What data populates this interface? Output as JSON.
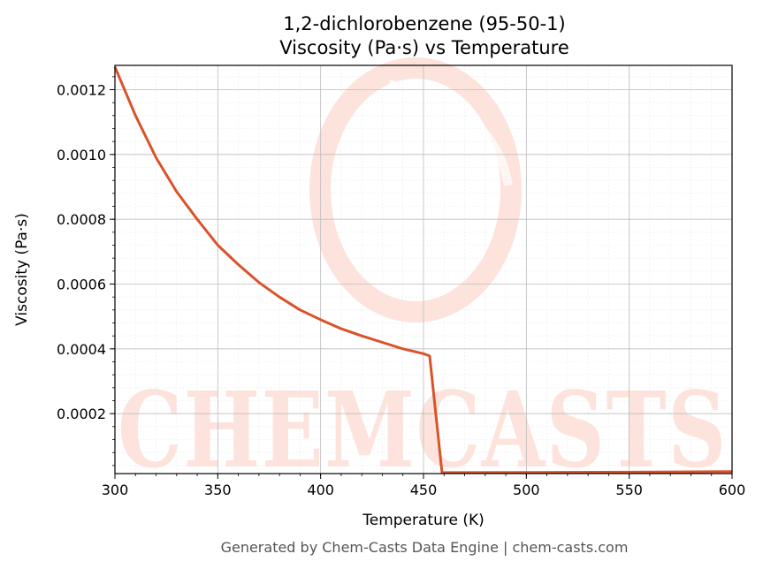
{
  "chart_data": {
    "type": "line",
    "title": "1,2-dichlorobenzene (95-50-1)",
    "subtitle": "Viscosity (Pa·s) vs Temperature",
    "xlabel": "Temperature (K)",
    "ylabel": "Viscosity (Pa·s)",
    "xlim": [
      300,
      600
    ],
    "ylim": [
      1.5e-05,
      0.001275
    ],
    "xticks": [
      300,
      350,
      400,
      450,
      500,
      550,
      600
    ],
    "xtick_labels": [
      "300",
      "350",
      "400",
      "450",
      "500",
      "550",
      "600"
    ],
    "yticks": [
      0.0002,
      0.0004,
      0.0006,
      0.0008,
      0.001,
      0.0012
    ],
    "ytick_labels": [
      "0.0002",
      "0.0004",
      "0.0006",
      "0.0008",
      "0.0010",
      "0.0012"
    ],
    "grid": true,
    "series": [
      {
        "color": "#d9532a",
        "x": [
          300,
          310,
          320,
          330,
          340,
          350,
          360,
          370,
          380,
          390,
          400,
          410,
          420,
          430,
          440,
          450,
          453,
          459,
          460,
          500,
          550,
          600
        ],
        "y": [
          0.00127,
          0.00112,
          0.00099,
          0.000885,
          0.0008,
          0.00072,
          0.00066,
          0.000605,
          0.00056,
          0.00052,
          0.00049,
          0.000462,
          0.00044,
          0.00042,
          0.0004,
          0.000385,
          0.000378,
          1.8e-05,
          1.8e-05,
          1.85e-05,
          1.95e-05,
          2.1e-05
        ]
      }
    ]
  },
  "watermark": {
    "text": "CHEMCASTS",
    "color": "#fde3dc"
  },
  "footer": "Generated by Chem-Casts Data Engine | chem-casts.com"
}
